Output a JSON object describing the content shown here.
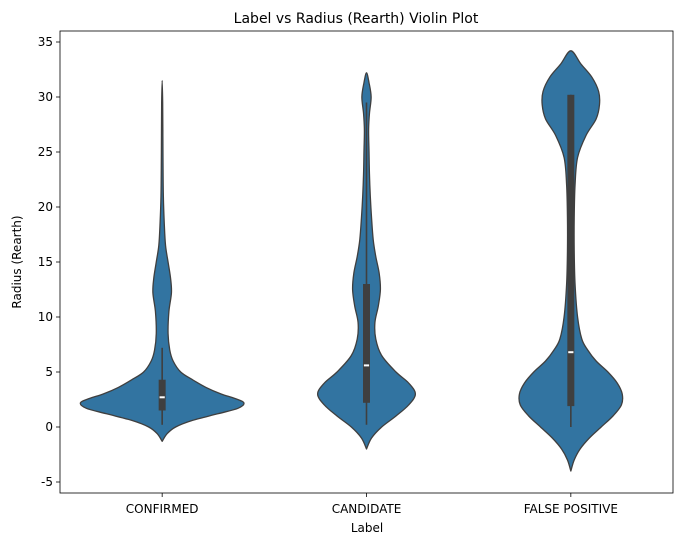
{
  "chart_data": {
    "type": "violin",
    "title": "Label vs Radius (Rearth) Violin Plot",
    "xlabel": "Label",
    "ylabel": "Radius (Rearth)",
    "ylim": [
      -6,
      36
    ],
    "yticks": [
      -5,
      0,
      5,
      10,
      15,
      20,
      25,
      30,
      35
    ],
    "grid": false,
    "legend": "none",
    "categories": [
      "CONFIRMED",
      "CANDIDATE",
      "FALSE POSITIVE"
    ],
    "colors": {
      "violin": "#3274a1",
      "outline": "#3f3f3f",
      "box": "#3f3f3f",
      "median": "#ffffff"
    },
    "series": [
      {
        "label": "CONFIRMED",
        "range": [
          -1.3,
          31.5
        ],
        "box": {
          "q1": 1.5,
          "median": 2.7,
          "q3": 4.3
        },
        "whiskers": [
          0.2,
          7.2
        ],
        "density": [
          [
            -1.3,
            0.0
          ],
          [
            -0.6,
            0.06
          ],
          [
            0.0,
            0.16
          ],
          [
            0.6,
            0.36
          ],
          [
            1.2,
            0.66
          ],
          [
            1.7,
            0.9
          ],
          [
            2.2,
            0.97
          ],
          [
            2.6,
            0.86
          ],
          [
            3.0,
            0.7
          ],
          [
            3.6,
            0.52
          ],
          [
            4.3,
            0.36
          ],
          [
            5.0,
            0.22
          ],
          [
            6.0,
            0.13
          ],
          [
            7.0,
            0.09
          ],
          [
            8.5,
            0.07
          ],
          [
            10.5,
            0.08
          ],
          [
            12.2,
            0.11
          ],
          [
            13.5,
            0.1
          ],
          [
            15.0,
            0.07
          ],
          [
            16.5,
            0.04
          ],
          [
            18.5,
            0.025
          ],
          [
            21.0,
            0.014
          ],
          [
            24.0,
            0.01
          ],
          [
            27.0,
            0.008
          ],
          [
            29.5,
            0.006
          ],
          [
            31.5,
            0.0
          ]
        ]
      },
      {
        "label": "CANDIDATE",
        "range": [
          -2.0,
          32.2
        ],
        "box": {
          "q1": 2.2,
          "median": 5.6,
          "q3": 13.0
        },
        "whiskers": [
          0.2,
          29.5
        ],
        "density": [
          [
            -2.0,
            0.0
          ],
          [
            -1.0,
            0.06
          ],
          [
            0.0,
            0.18
          ],
          [
            1.0,
            0.35
          ],
          [
            2.0,
            0.5
          ],
          [
            3.0,
            0.58
          ],
          [
            4.0,
            0.5
          ],
          [
            5.0,
            0.35
          ],
          [
            6.5,
            0.18
          ],
          [
            8.0,
            0.11
          ],
          [
            9.5,
            0.1
          ],
          [
            11.0,
            0.14
          ],
          [
            12.5,
            0.165
          ],
          [
            14.0,
            0.15
          ],
          [
            15.5,
            0.11
          ],
          [
            17.0,
            0.08
          ],
          [
            19.0,
            0.06
          ],
          [
            21.0,
            0.045
          ],
          [
            23.0,
            0.035
          ],
          [
            25.0,
            0.03
          ],
          [
            27.0,
            0.025
          ],
          [
            28.5,
            0.035
          ],
          [
            30.0,
            0.055
          ],
          [
            31.3,
            0.03
          ],
          [
            32.2,
            0.0
          ]
        ]
      },
      {
        "label": "FALSE POSITIVE",
        "range": [
          -4.0,
          34.2
        ],
        "box": {
          "q1": 1.9,
          "median": 6.8,
          "q3": 30.2
        },
        "whiskers": [
          0.0,
          30.2
        ],
        "density": [
          [
            -4.0,
            0.0
          ],
          [
            -3.0,
            0.04
          ],
          [
            -2.0,
            0.11
          ],
          [
            -1.0,
            0.22
          ],
          [
            0.0,
            0.36
          ],
          [
            1.0,
            0.5
          ],
          [
            2.0,
            0.6
          ],
          [
            3.0,
            0.61
          ],
          [
            4.0,
            0.55
          ],
          [
            5.0,
            0.44
          ],
          [
            6.0,
            0.3
          ],
          [
            7.0,
            0.2
          ],
          [
            8.0,
            0.13
          ],
          [
            10.0,
            0.08
          ],
          [
            13.0,
            0.05
          ],
          [
            16.0,
            0.04
          ],
          [
            19.0,
            0.04
          ],
          [
            22.0,
            0.05
          ],
          [
            24.5,
            0.08
          ],
          [
            26.5,
            0.18
          ],
          [
            28.0,
            0.3
          ],
          [
            29.3,
            0.34
          ],
          [
            30.5,
            0.33
          ],
          [
            31.8,
            0.25
          ],
          [
            33.0,
            0.12
          ],
          [
            34.2,
            0.0
          ]
        ]
      }
    ]
  }
}
